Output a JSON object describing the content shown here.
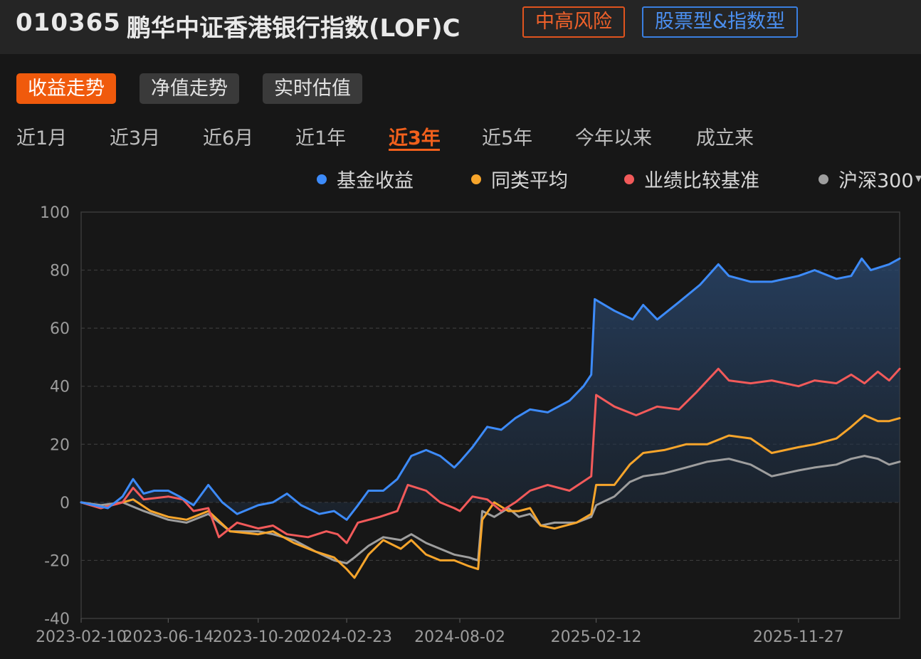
{
  "header": {
    "code": "010365",
    "name": "鹏华中证香港银行指数(LOF)C",
    "risk_tag": "中高风险",
    "type_tag": "股票型&指数型"
  },
  "mode_tabs": [
    "收益走势",
    "净值走势",
    "实时估值"
  ],
  "active_mode": 0,
  "range_tabs": [
    "近1月",
    "近3月",
    "近6月",
    "近1年",
    "近3年",
    "近5年",
    "今年以来",
    "成立来"
  ],
  "active_range": 4,
  "colors": {
    "accent": "#f2601c",
    "fund": "#3d8bfa",
    "peer": "#f7a52b",
    "bench": "#f25a5a",
    "csi300": "#9e9e9e"
  },
  "chart_data": {
    "type": "line",
    "title": "",
    "ylim": [
      -40,
      100
    ],
    "yticks": [
      100,
      80,
      60,
      40,
      20,
      0,
      -20,
      -40
    ],
    "xticks": [
      "2023-02-10",
      "2023-06-14",
      "2023-10-20",
      "2024-02-23",
      "2024-08-02",
      "2025-02-12",
      "2025-11-27"
    ],
    "xlim": [
      "2023-02-10",
      "2026-04-20"
    ],
    "grid": true,
    "legend_position": "top",
    "series": [
      {
        "name": "基金收益",
        "color": "#3d8bfa",
        "area": true,
        "points": [
          [
            "2023-02-10",
            0
          ],
          [
            "2023-03-01",
            -1
          ],
          [
            "2023-03-20",
            -2
          ],
          [
            "2023-04-10",
            2
          ],
          [
            "2023-04-25",
            8
          ],
          [
            "2023-05-10",
            3
          ],
          [
            "2023-05-25",
            4
          ],
          [
            "2023-06-14",
            4
          ],
          [
            "2023-06-30",
            2
          ],
          [
            "2023-07-20",
            -1
          ],
          [
            "2023-08-10",
            6
          ],
          [
            "2023-08-30",
            0
          ],
          [
            "2023-09-20",
            -4
          ],
          [
            "2023-10-20",
            -1
          ],
          [
            "2023-11-10",
            0
          ],
          [
            "2023-11-30",
            3
          ],
          [
            "2023-12-20",
            -1
          ],
          [
            "2024-01-15",
            -4
          ],
          [
            "2024-02-05",
            -3
          ],
          [
            "2024-02-23",
            -6
          ],
          [
            "2024-03-10",
            -1
          ],
          [
            "2024-03-25",
            4
          ],
          [
            "2024-04-15",
            4
          ],
          [
            "2024-05-05",
            8
          ],
          [
            "2024-05-25",
            16
          ],
          [
            "2024-06-15",
            18
          ],
          [
            "2024-07-05",
            16
          ],
          [
            "2024-07-25",
            12
          ],
          [
            "2024-08-02",
            14
          ],
          [
            "2024-08-20",
            19
          ],
          [
            "2024-09-10",
            26
          ],
          [
            "2024-09-30",
            25
          ],
          [
            "2024-10-20",
            29
          ],
          [
            "2024-11-10",
            32
          ],
          [
            "2024-12-05",
            31
          ],
          [
            "2025-01-05",
            35
          ],
          [
            "2025-01-25",
            40
          ],
          [
            "2025-02-05",
            44
          ],
          [
            "2025-02-10",
            70
          ],
          [
            "2025-03-10",
            66
          ],
          [
            "2025-04-05",
            63
          ],
          [
            "2025-04-20",
            68
          ],
          [
            "2025-05-10",
            63
          ],
          [
            "2025-06-10",
            69
          ],
          [
            "2025-07-10",
            75
          ],
          [
            "2025-08-05",
            82
          ],
          [
            "2025-08-20",
            78
          ],
          [
            "2025-09-20",
            76
          ],
          [
            "2025-10-20",
            76
          ],
          [
            "2025-11-27",
            78
          ],
          [
            "2025-12-20",
            80
          ],
          [
            "2026-01-20",
            77
          ],
          [
            "2026-02-10",
            78
          ],
          [
            "2026-02-25",
            84
          ],
          [
            "2026-03-10",
            80
          ],
          [
            "2026-04-05",
            82
          ],
          [
            "2026-04-20",
            84
          ]
        ]
      },
      {
        "name": "同类平均",
        "color": "#f7a52b",
        "area": false,
        "points": [
          [
            "2023-02-10",
            0
          ],
          [
            "2023-03-10",
            -2
          ],
          [
            "2023-04-10",
            0
          ],
          [
            "2023-04-25",
            1
          ],
          [
            "2023-05-20",
            -3
          ],
          [
            "2023-06-14",
            -5
          ],
          [
            "2023-07-10",
            -6
          ],
          [
            "2023-08-10",
            -3
          ],
          [
            "2023-09-10",
            -10
          ],
          [
            "2023-10-20",
            -11
          ],
          [
            "2023-11-10",
            -10
          ],
          [
            "2023-12-10",
            -14
          ],
          [
            "2024-01-10",
            -17
          ],
          [
            "2024-02-05",
            -19
          ],
          [
            "2024-02-23",
            -23
          ],
          [
            "2024-03-05",
            -26
          ],
          [
            "2024-03-25",
            -18
          ],
          [
            "2024-04-15",
            -13
          ],
          [
            "2024-05-10",
            -16
          ],
          [
            "2024-05-25",
            -13
          ],
          [
            "2024-06-15",
            -18
          ],
          [
            "2024-07-05",
            -20
          ],
          [
            "2024-07-25",
            -20
          ],
          [
            "2024-08-15",
            -22
          ],
          [
            "2024-08-28",
            -23
          ],
          [
            "2024-09-03",
            -6
          ],
          [
            "2024-09-20",
            0
          ],
          [
            "2024-10-10",
            -3
          ],
          [
            "2024-10-25",
            -3
          ],
          [
            "2024-11-10",
            -2
          ],
          [
            "2024-11-25",
            -8
          ],
          [
            "2024-12-15",
            -9
          ],
          [
            "2025-01-15",
            -7
          ],
          [
            "2025-02-05",
            -4
          ],
          [
            "2025-02-12",
            6
          ],
          [
            "2025-03-10",
            6
          ],
          [
            "2025-04-01",
            13
          ],
          [
            "2025-04-20",
            17
          ],
          [
            "2025-05-20",
            18
          ],
          [
            "2025-06-20",
            20
          ],
          [
            "2025-07-20",
            20
          ],
          [
            "2025-08-20",
            23
          ],
          [
            "2025-09-20",
            22
          ],
          [
            "2025-10-20",
            17
          ],
          [
            "2025-11-27",
            19
          ],
          [
            "2025-12-20",
            20
          ],
          [
            "2026-01-20",
            22
          ],
          [
            "2026-02-10",
            26
          ],
          [
            "2026-03-01",
            30
          ],
          [
            "2026-03-20",
            28
          ],
          [
            "2026-04-05",
            28
          ],
          [
            "2026-04-20",
            29
          ]
        ]
      },
      {
        "name": "业绩比较基准",
        "color": "#f25a5a",
        "area": false,
        "points": [
          [
            "2023-02-10",
            0
          ],
          [
            "2023-03-10",
            -2
          ],
          [
            "2023-04-10",
            0
          ],
          [
            "2023-04-25",
            5
          ],
          [
            "2023-05-10",
            1
          ],
          [
            "2023-06-14",
            2
          ],
          [
            "2023-07-05",
            1
          ],
          [
            "2023-07-20",
            -3
          ],
          [
            "2023-08-10",
            -2
          ],
          [
            "2023-08-25",
            -12
          ],
          [
            "2023-09-20",
            -7
          ],
          [
            "2023-10-20",
            -9
          ],
          [
            "2023-11-10",
            -8
          ],
          [
            "2023-11-30",
            -11
          ],
          [
            "2023-12-30",
            -12
          ],
          [
            "2024-01-25",
            -10
          ],
          [
            "2024-02-10",
            -11
          ],
          [
            "2024-02-23",
            -14
          ],
          [
            "2024-03-10",
            -7
          ],
          [
            "2024-04-10",
            -5
          ],
          [
            "2024-05-05",
            -3
          ],
          [
            "2024-05-20",
            6
          ],
          [
            "2024-06-15",
            4
          ],
          [
            "2024-07-05",
            0
          ],
          [
            "2024-07-25",
            -2
          ],
          [
            "2024-08-02",
            -3
          ],
          [
            "2024-08-20",
            2
          ],
          [
            "2024-09-10",
            1
          ],
          [
            "2024-09-30",
            -3
          ],
          [
            "2024-10-20",
            0
          ],
          [
            "2024-11-10",
            4
          ],
          [
            "2024-12-05",
            6
          ],
          [
            "2025-01-05",
            4
          ],
          [
            "2025-02-05",
            9
          ],
          [
            "2025-02-12",
            37
          ],
          [
            "2025-03-10",
            33
          ],
          [
            "2025-04-10",
            30
          ],
          [
            "2025-05-10",
            33
          ],
          [
            "2025-06-10",
            32
          ],
          [
            "2025-07-05",
            38
          ],
          [
            "2025-08-05",
            46
          ],
          [
            "2025-08-20",
            42
          ],
          [
            "2025-09-20",
            41
          ],
          [
            "2025-10-20",
            42
          ],
          [
            "2025-11-27",
            40
          ],
          [
            "2025-12-20",
            42
          ],
          [
            "2026-01-20",
            41
          ],
          [
            "2026-02-10",
            44
          ],
          [
            "2026-03-01",
            41
          ],
          [
            "2026-03-20",
            45
          ],
          [
            "2026-04-05",
            42
          ],
          [
            "2026-04-20",
            46
          ]
        ]
      },
      {
        "name": "沪深300",
        "color": "#9e9e9e",
        "area": false,
        "points": [
          [
            "2023-02-10",
            0
          ],
          [
            "2023-03-10",
            -1
          ],
          [
            "2023-04-10",
            0
          ],
          [
            "2023-05-10",
            -3
          ],
          [
            "2023-06-14",
            -6
          ],
          [
            "2023-07-10",
            -7
          ],
          [
            "2023-08-10",
            -4
          ],
          [
            "2023-09-10",
            -10
          ],
          [
            "2023-10-20",
            -10
          ],
          [
            "2023-11-10",
            -11
          ],
          [
            "2023-12-10",
            -13
          ],
          [
            "2024-01-10",
            -17
          ],
          [
            "2024-02-05",
            -20
          ],
          [
            "2024-02-23",
            -21
          ],
          [
            "2024-03-05",
            -19
          ],
          [
            "2024-03-25",
            -15
          ],
          [
            "2024-04-15",
            -12
          ],
          [
            "2024-05-10",
            -13
          ],
          [
            "2024-05-25",
            -11
          ],
          [
            "2024-06-15",
            -14
          ],
          [
            "2024-07-05",
            -16
          ],
          [
            "2024-07-25",
            -18
          ],
          [
            "2024-08-15",
            -19
          ],
          [
            "2024-08-28",
            -20
          ],
          [
            "2024-09-03",
            -3
          ],
          [
            "2024-09-20",
            -5
          ],
          [
            "2024-10-10",
            -2
          ],
          [
            "2024-10-25",
            -5
          ],
          [
            "2024-11-10",
            -4
          ],
          [
            "2024-11-25",
            -8
          ],
          [
            "2024-12-15",
            -7
          ],
          [
            "2025-01-15",
            -7
          ],
          [
            "2025-02-05",
            -5
          ],
          [
            "2025-02-12",
            -1
          ],
          [
            "2025-03-10",
            2
          ],
          [
            "2025-04-01",
            7
          ],
          [
            "2025-04-20",
            9
          ],
          [
            "2025-05-20",
            10
          ],
          [
            "2025-06-20",
            12
          ],
          [
            "2025-07-20",
            14
          ],
          [
            "2025-08-20",
            15
          ],
          [
            "2025-09-20",
            13
          ],
          [
            "2025-10-20",
            9
          ],
          [
            "2025-11-27",
            11
          ],
          [
            "2025-12-20",
            12
          ],
          [
            "2026-01-20",
            13
          ],
          [
            "2026-02-10",
            15
          ],
          [
            "2026-03-01",
            16
          ],
          [
            "2026-03-20",
            15
          ],
          [
            "2026-04-05",
            13
          ],
          [
            "2026-04-20",
            14
          ]
        ]
      }
    ]
  }
}
